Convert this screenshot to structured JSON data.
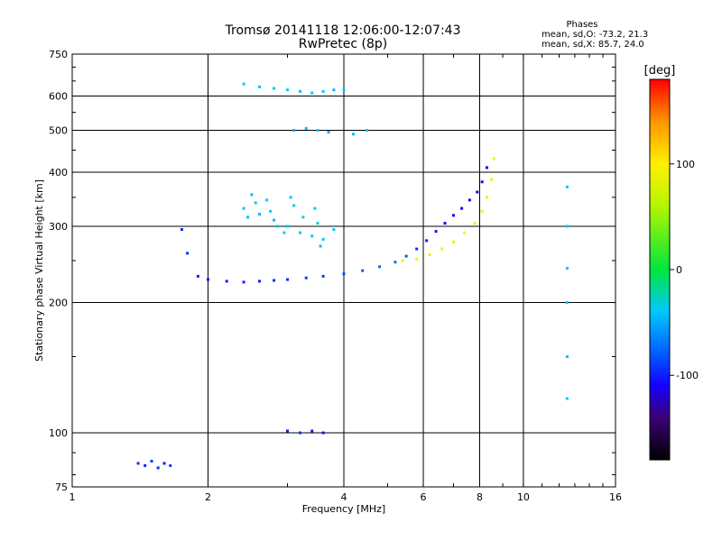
{
  "header": {
    "title": "Tromsø 20141118 12:06:00-12:07:43",
    "subtitle": "RwPretec (8p)",
    "stats_heading": "Phases",
    "stats_o": "mean, sd,O: -73.2, 21.3",
    "stats_x": "mean, sd,X:  85.7, 24.0"
  },
  "chart_data": {
    "type": "scatter",
    "xlabel": "Frequency [MHz]",
    "ylabel": "Stationary phase Virtual Height [km]",
    "x_scale": "log",
    "y_scale": "log",
    "xlim": [
      1,
      16
    ],
    "ylim": [
      75,
      750
    ],
    "x_ticks": [
      1,
      2,
      4,
      6,
      8,
      10,
      16
    ],
    "x_tick_labels": [
      "1",
      "2",
      "4",
      "6",
      "8",
      "10",
      "16"
    ],
    "y_ticks": [
      75,
      100,
      200,
      300,
      400,
      500,
      600,
      750
    ],
    "y_tick_labels": [
      "75",
      "100",
      "200",
      "300",
      "400",
      "500",
      "600",
      "750"
    ],
    "grid": true,
    "colorbar": {
      "label": "[deg]",
      "range": [
        -180,
        180
      ],
      "ticks": [
        100,
        0,
        -100
      ],
      "tick_labels": [
        "100",
        "0",
        "-100"
      ]
    },
    "series": [
      {
        "x": [
          1.75,
          1.8,
          1.9,
          2.0,
          2.2,
          2.4,
          2.6,
          2.8,
          3.0,
          3.3,
          3.6,
          4.0,
          4.4,
          4.8,
          5.2,
          5.5,
          5.8,
          6.1,
          6.4,
          6.7,
          7.0,
          7.3,
          7.6,
          7.9,
          8.1,
          8.3
        ],
        "y": [
          295,
          260,
          230,
          226,
          224,
          223,
          224,
          225,
          226,
          228,
          230,
          233,
          237,
          242,
          248,
          256,
          266,
          278,
          292,
          305,
          318,
          330,
          345,
          360,
          380,
          410
        ],
        "phase": [
          -95,
          -95,
          -100,
          -100,
          -100,
          -100,
          -100,
          -95,
          -95,
          -90,
          -90,
          -85,
          -80,
          -75,
          -70,
          -80,
          -95,
          -100,
          -105,
          -110,
          -110,
          -110,
          -115,
          -115,
          -115,
          -115
        ]
      },
      {
        "x": [
          5.4,
          5.8,
          6.2,
          6.6,
          7.0,
          7.4,
          7.8,
          8.1,
          8.3,
          8.5,
          8.6
        ],
        "y": [
          250,
          252,
          258,
          266,
          276,
          290,
          305,
          325,
          350,
          385,
          430
        ],
        "phase": [
          95,
          95,
          95,
          95,
          95,
          95,
          95,
          95,
          95,
          95,
          95
        ]
      },
      {
        "x": [
          2.4,
          2.6,
          2.8,
          3.0,
          3.2,
          3.4,
          3.6,
          2.5,
          2.7,
          3.1,
          3.5,
          3.8,
          2.45,
          2.55,
          2.75,
          2.85,
          2.95,
          3.05,
          3.25,
          3.45,
          3.55
        ],
        "y": [
          330,
          320,
          310,
          300,
          290,
          285,
          280,
          355,
          345,
          335,
          305,
          295,
          315,
          340,
          325,
          300,
          290,
          350,
          315,
          330,
          270
        ],
        "phase": [
          -40,
          -45,
          -45,
          -40,
          -30,
          -40,
          -35,
          -45,
          -40,
          -35,
          -30,
          -40,
          -45,
          -40,
          -35,
          -30,
          -40,
          -45,
          -35,
          -40,
          -45
        ]
      },
      {
        "x": [
          2.4,
          2.6,
          2.8,
          3.0,
          3.2,
          3.4,
          3.6,
          3.8,
          4.0,
          3.1,
          3.3,
          3.5,
          3.7,
          4.2,
          4.5
        ],
        "y": [
          640,
          630,
          625,
          620,
          615,
          610,
          615,
          620,
          620,
          500,
          505,
          500,
          495,
          490,
          500
        ],
        "phase": [
          -40,
          -45,
          -35,
          -40,
          -45,
          -35,
          -40,
          -45,
          -40,
          -50,
          -45,
          -40,
          -50,
          -45,
          -40
        ]
      },
      {
        "x": [
          1.4,
          1.45,
          1.5,
          1.55,
          1.6,
          1.65,
          3.0,
          3.2,
          3.4,
          3.6
        ],
        "y": [
          85,
          84,
          86,
          83,
          85,
          84,
          101,
          100,
          101,
          100
        ],
        "phase": [
          -95,
          -100,
          -90,
          -95,
          -100,
          -95,
          -100,
          -95,
          -100,
          -105
        ]
      },
      {
        "x": [
          12.5,
          12.5,
          12.5,
          12.5,
          12.5,
          12.5
        ],
        "y": [
          370,
          300,
          240,
          200,
          150,
          120
        ],
        "phase": [
          -40,
          -40,
          -40,
          -40,
          -40,
          -40
        ]
      }
    ]
  }
}
